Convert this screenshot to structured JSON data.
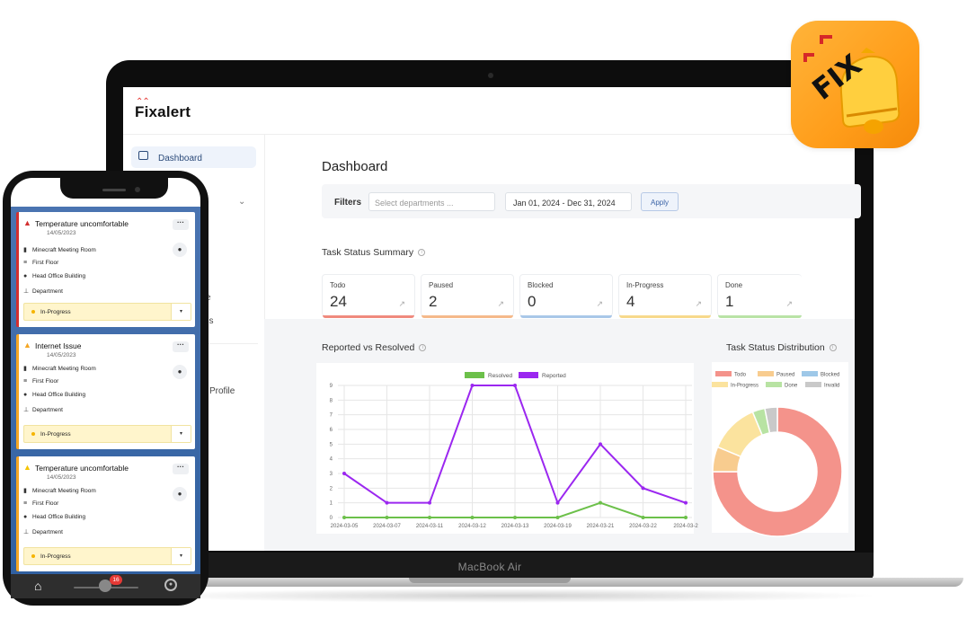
{
  "brand": {
    "name": "Fixalert",
    "app_icon_text": "FIX"
  },
  "laptop": {
    "model_label": "MacBook Air"
  },
  "sidebar": {
    "active_item": "Dashboard",
    "fragments": [
      "e",
      "ns",
      "Profile"
    ]
  },
  "dashboard": {
    "title": "Dashboard",
    "filters": {
      "label": "Filters",
      "departments_placeholder": "Select departments ...",
      "date_range": "Jan 01, 2024 - Dec 31, 2024",
      "apply_label": "Apply"
    },
    "task_status_summary": {
      "title": "Task Status Summary",
      "cards": [
        {
          "label": "Todo",
          "value": "24",
          "color": "#f08a7e"
        },
        {
          "label": "Paused",
          "value": "2",
          "color": "#f5b98a"
        },
        {
          "label": "Blocked",
          "value": "0",
          "color": "#a9c7e8"
        },
        {
          "label": "In-Progress",
          "value": "4",
          "color": "#f7d98b"
        },
        {
          "label": "Done",
          "value": "1",
          "color": "#b9e3a6"
        }
      ]
    },
    "reported_vs_resolved_title": "Reported vs Resolved",
    "distribution_title": "Task Status Distribution"
  },
  "chart_data": [
    {
      "type": "line",
      "title": "Reported vs Resolved",
      "x": [
        "2024-03-05",
        "2024-03-07",
        "2024-03-11",
        "2024-03-12",
        "2024-03-13",
        "2024-03-19",
        "2024-03-21",
        "2024-03-22",
        "2024-03-2"
      ],
      "series": [
        {
          "name": "Resolved",
          "color": "#6cc04a",
          "values": [
            0,
            0,
            0,
            0,
            0,
            0,
            1,
            0,
            0
          ]
        },
        {
          "name": "Reported",
          "color": "#9b27f0",
          "values": [
            3,
            1,
            1,
            9,
            9,
            1,
            5,
            2,
            1
          ]
        }
      ],
      "ylim": [
        0,
        9
      ],
      "yticks": [
        "0",
        "1",
        "2",
        "3",
        "4",
        "5",
        "6",
        "7",
        "8",
        "9"
      ],
      "grid": true,
      "legend": "top"
    },
    {
      "type": "pie",
      "title": "Task Status Distribution",
      "labels": [
        "Todo",
        "Paused",
        "Blocked",
        "In-Progress",
        "Done",
        "Invalid"
      ],
      "values": [
        24,
        2,
        0,
        4,
        1,
        1
      ],
      "colors": [
        "#f4938b",
        "#f8cc8f",
        "#9ec8e8",
        "#fbe39e",
        "#b8e3a3",
        "#c9c9c9"
      ],
      "legend": "top"
    }
  ],
  "phone": {
    "tasks": [
      {
        "title": "Temperature uncomfortable",
        "date": "14/05/2023",
        "room": "Minecraft Meeting Room",
        "floor": "First Floor",
        "building": "Head Office Building",
        "department": "Department",
        "status": "In-Progress",
        "severity_color": "#d32f2f"
      },
      {
        "title": "Internet Issue",
        "date": "14/05/2023",
        "room": "Minecraft Meeting Room",
        "floor": "First Floor",
        "building": "Head Office Building",
        "department": "Department",
        "status": "In-Progress",
        "severity_color": "#f5a623"
      },
      {
        "title": "Temperature uncomfortable",
        "date": "14/05/2023",
        "room": "Minecraft Meeting Room",
        "floor": "First Floor",
        "building": "Head Office Building",
        "department": "Department",
        "status": "In-Progress",
        "severity_color": "#f5a623"
      }
    ],
    "notification_count": "16",
    "icons": [
      "home-icon",
      "notification-icon",
      "user-icon"
    ]
  }
}
